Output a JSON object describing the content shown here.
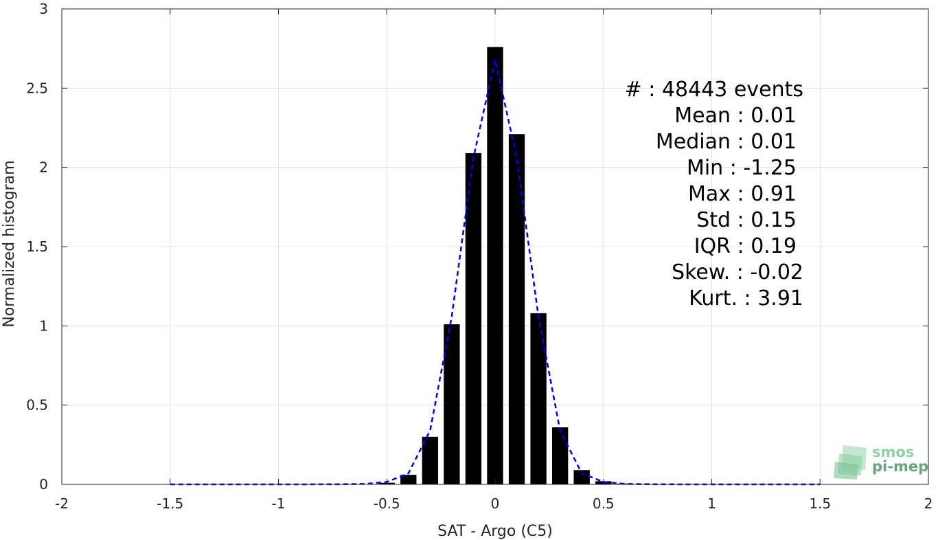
{
  "chart_data": {
    "type": "bar",
    "xlabel": "SAT - Argo (C5)",
    "ylabel": "Normalized histogram",
    "xlim": [
      -2,
      2
    ],
    "ylim": [
      0,
      3
    ],
    "grid": true,
    "x_ticks": [
      "-2",
      "-1.5",
      "-1",
      "-0.5",
      "0",
      "0.5",
      "1",
      "1.5",
      "2"
    ],
    "y_ticks": [
      "0",
      "0.5",
      "1",
      "1.5",
      "2",
      "2.5",
      "3"
    ],
    "bars": {
      "x": [
        -1.0,
        -0.9,
        -0.8,
        -0.7,
        -0.6,
        -0.5,
        -0.4,
        -0.3,
        -0.2,
        -0.1,
        0.0,
        0.1,
        0.2,
        0.3,
        0.4,
        0.5,
        0.6,
        0.7,
        0.8,
        0.9
      ],
      "values": [
        0.001,
        0.001,
        0.001,
        0.001,
        0.002,
        0.01,
        0.06,
        0.3,
        1.01,
        2.09,
        2.76,
        2.21,
        1.08,
        0.36,
        0.09,
        0.02,
        0.005,
        0.002,
        0.001,
        0.001
      ],
      "color": "#000000"
    },
    "fit_curve": {
      "style": "dashed",
      "color": "#0000ee",
      "x": [
        -1.5,
        -1.3,
        -1.1,
        -0.9,
        -0.7,
        -0.6,
        -0.5,
        -0.4,
        -0.3,
        -0.2,
        -0.1,
        0.0,
        0.1,
        0.2,
        0.3,
        0.4,
        0.5,
        0.6,
        0.7,
        0.9,
        1.1,
        1.3,
        1.5
      ],
      "y": [
        0.0,
        0.0,
        0.0,
        0.0,
        0.001,
        0.003,
        0.015,
        0.07,
        0.34,
        1.06,
        2.06,
        2.68,
        2.06,
        1.06,
        0.34,
        0.07,
        0.015,
        0.003,
        0.001,
        0.0,
        0.0,
        0.0,
        0.0
      ]
    },
    "stats": [
      "#  : 48443 events",
      "Mean : 0.01",
      "Median : 0.01",
      "Min : -1.25",
      "Max : 0.91",
      "Std : 0.15",
      "IQR : 0.19",
      "Skew. : -0.02",
      "Kurt. : 3.91"
    ]
  },
  "logo": {
    "line1": "smos",
    "line2": "pi-mep",
    "color_light": "#8fd1a6",
    "color_dark": "#6aa37f"
  }
}
